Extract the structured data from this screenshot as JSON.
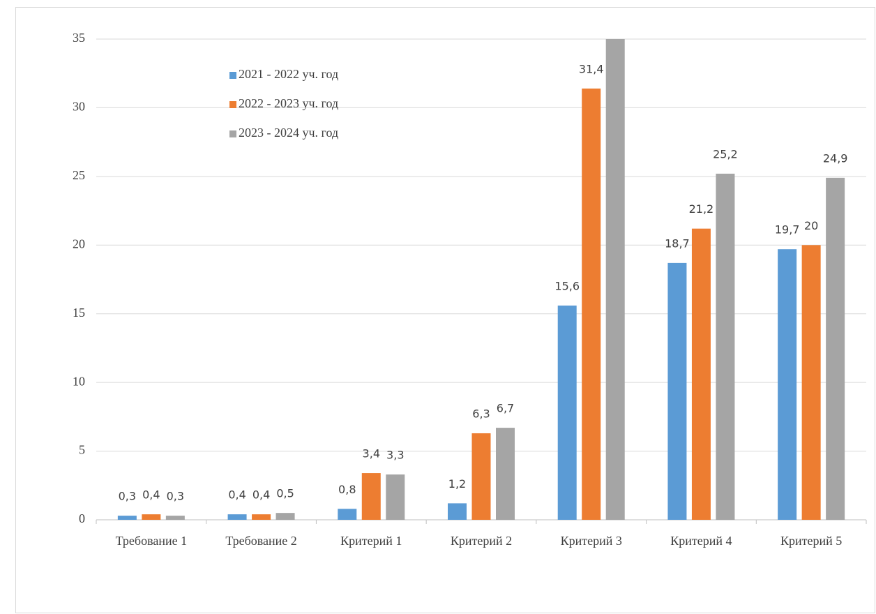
{
  "chart_data": {
    "type": "bar",
    "categories": [
      "Требование 1",
      "Требование 2",
      "Критерий 1",
      "Критерий 2",
      "Критерий 3",
      "Критерий 4",
      "Критерий 5"
    ],
    "series": [
      {
        "name": "2021 - 2022 уч. год",
        "color": "#5b9bd5",
        "values": [
          0.3,
          0.4,
          0.8,
          1.2,
          15.6,
          18.7,
          19.7
        ],
        "value_labels": [
          "0,3",
          "0,4",
          "0,8",
          "1,2",
          "15,6",
          "18,7",
          "19,7"
        ]
      },
      {
        "name": "2022 - 2023 уч. год",
        "color": "#ed7d31",
        "values": [
          0.4,
          0.4,
          3.4,
          6.3,
          31.4,
          21.2,
          20
        ],
        "value_labels": [
          "0,4",
          "0,4",
          "3,4",
          "6,3",
          "31,4",
          "21,2",
          "20"
        ]
      },
      {
        "name": "2023 - 2024 уч. год",
        "color": "#a5a5a5",
        "values": [
          0.3,
          0.5,
          3.3,
          6.7,
          35,
          25.2,
          24.9
        ],
        "value_labels": [
          "0,3",
          "0,5",
          "3,3",
          "6,7",
          null,
          "25,2",
          "24,9"
        ]
      }
    ],
    "ylim": [
      0,
      35
    ],
    "yticks": [
      0,
      5,
      10,
      15,
      20,
      25,
      30,
      35
    ],
    "grid": true,
    "legend": "top-left"
  }
}
